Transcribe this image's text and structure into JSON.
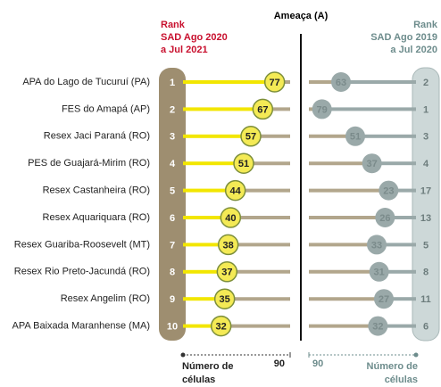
{
  "chart_data": {
    "type": "dumbbell",
    "title": "Ameaça (A)",
    "categories": [
      "APA do Lago de Tucuruí (PA)",
      "FES do Amapá (AP)",
      "Resex Jaci Paraná (RO)",
      "PES de Guajará-Mirim (RO)",
      "Resex Castanheira (RO)",
      "Resex Aquariquara (RO)",
      "Resex Guariba-Roosevelt (MT)",
      "Resex Rio Preto-Jacundá (RO)",
      "Resex Angelim (RO)",
      "APA Baixada Maranhense (MA)"
    ],
    "left": {
      "header": [
        "Rank",
        "SAD Ago 2020",
        "a Jul 2021"
      ],
      "ranks": [
        1,
        2,
        3,
        4,
        5,
        6,
        7,
        8,
        9,
        10
      ],
      "values": [
        77,
        67,
        57,
        51,
        44,
        40,
        38,
        37,
        35,
        32
      ],
      "color": "#f2e600",
      "xlim": [
        0,
        90
      ],
      "xticks": [
        90
      ],
      "axis_label": [
        "Número de",
        "células"
      ]
    },
    "right": {
      "header": [
        "Rank",
        "SAD Ago 2019",
        "a Jul 2020"
      ],
      "ranks": [
        2,
        1,
        3,
        4,
        17,
        13,
        5,
        8,
        11,
        6
      ],
      "values": [
        63,
        79,
        51,
        37,
        23,
        26,
        33,
        31,
        27,
        32
      ],
      "color": "#9aa9a9",
      "xlim": [
        0,
        90
      ],
      "xticks": [
        90
      ],
      "axis_label": [
        "Número de",
        "células"
      ]
    }
  }
}
